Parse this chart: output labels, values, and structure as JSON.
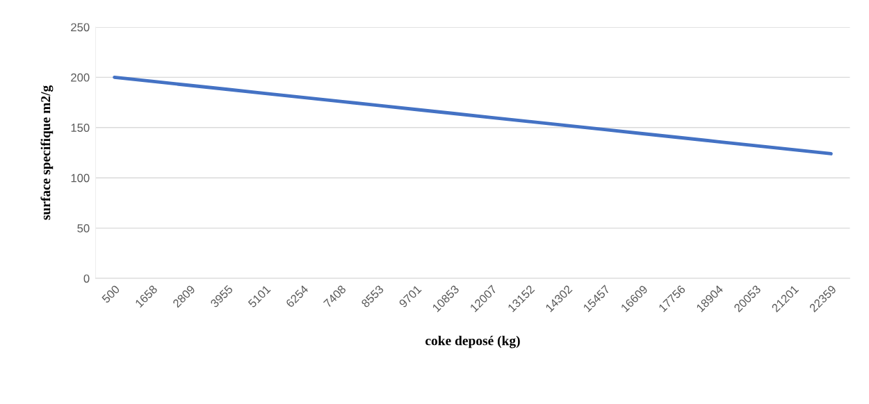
{
  "chart_data": {
    "type": "line",
    "xlabel": "coke deposé (kg)",
    "ylabel": "surface specifique m2/g",
    "categories": [
      "500",
      "1658",
      "2809",
      "3955",
      "5101",
      "6254",
      "7408",
      "8553",
      "9701",
      "10853",
      "12007",
      "13152",
      "14302",
      "15457",
      "16609",
      "17756",
      "18904",
      "20053",
      "21201",
      "22359"
    ],
    "series": [
      {
        "color": "#4472c4",
        "values": [
          200,
          196,
          192,
          188,
          184,
          180,
          176,
          172,
          168,
          164,
          160,
          156,
          152,
          148,
          144,
          140,
          136,
          132,
          128,
          124
        ]
      }
    ],
    "ylim": [
      0,
      250
    ],
    "yticks": [
      0,
      50,
      100,
      150,
      200,
      250
    ],
    "grid": "y",
    "legend": false,
    "marker": "none",
    "line_style": "solid"
  }
}
